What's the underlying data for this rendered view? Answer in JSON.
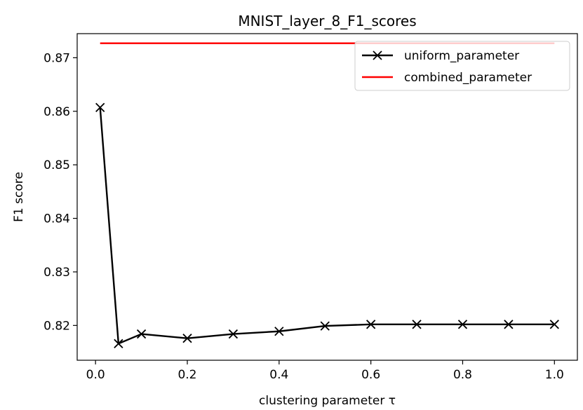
{
  "chart_data": {
    "type": "line",
    "title": "MNIST_layer_8_F1_scores",
    "xlabel": "clustering parameter τ",
    "ylabel": "F1 score",
    "xlim": [
      -0.04,
      1.05
    ],
    "ylim": [
      0.8135,
      0.8745
    ],
    "xticks": [
      0.0,
      0.2,
      0.4,
      0.6,
      0.8,
      1.0
    ],
    "xtick_labels": [
      "0.0",
      "0.2",
      "0.4",
      "0.6",
      "0.8",
      "1.0"
    ],
    "yticks": [
      0.82,
      0.83,
      0.84,
      0.85,
      0.86,
      0.87
    ],
    "ytick_labels": [
      "0.82",
      "0.83",
      "0.84",
      "0.85",
      "0.86",
      "0.87"
    ],
    "grid": false,
    "legend_position": "top-right",
    "series": [
      {
        "name": "uniform_parameter",
        "color": "#000000",
        "marker": "x",
        "x": [
          0.01,
          0.05,
          0.1,
          0.2,
          0.3,
          0.4,
          0.5,
          0.6,
          0.7,
          0.8,
          0.9,
          1.0
        ],
        "y": [
          0.8607,
          0.8166,
          0.8184,
          0.8176,
          0.8184,
          0.8189,
          0.8199,
          0.8202,
          0.8202,
          0.8202,
          0.8202,
          0.8202
        ]
      },
      {
        "name": "combined_parameter",
        "color": "#ff0000",
        "marker": "none",
        "x": [
          0.01,
          1.0
        ],
        "y": [
          0.8727,
          0.8727
        ]
      }
    ]
  }
}
